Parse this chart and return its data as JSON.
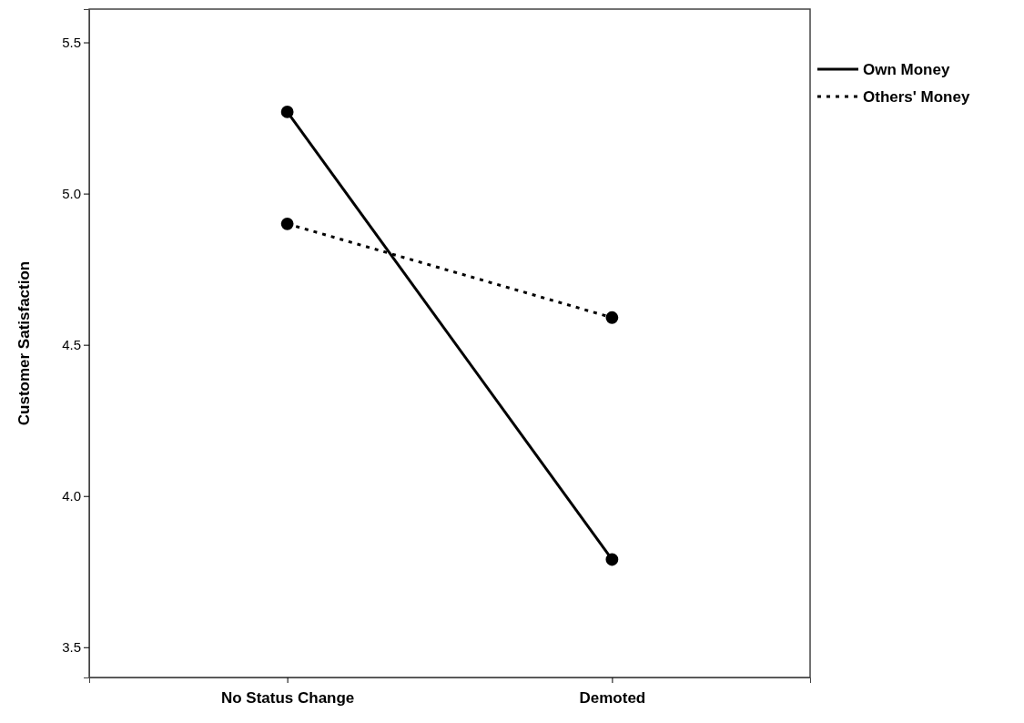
{
  "chart_data": {
    "type": "line",
    "ylabel": "Customer Satisfaction",
    "categories": [
      "No Status Change",
      "Demoted"
    ],
    "series": [
      {
        "name": "Own Money",
        "color": "#000000",
        "line_style": "solid",
        "values": [
          5.27,
          3.79
        ]
      },
      {
        "name": "Others' Money",
        "color": "#000000",
        "line_style": "dotted",
        "values": [
          4.9,
          4.59
        ]
      }
    ],
    "ylim": [
      3.4,
      5.61
    ],
    "yticks": [
      {
        "value": 3.5,
        "label": "3.5"
      },
      {
        "value": 4.0,
        "label": "4.0"
      },
      {
        "value": 4.5,
        "label": "4.5"
      },
      {
        "value": 5.0,
        "label": "5.0"
      },
      {
        "value": 5.5,
        "label": "5.5"
      }
    ],
    "marker": "circle",
    "legend": "top right",
    "grid": false
  }
}
